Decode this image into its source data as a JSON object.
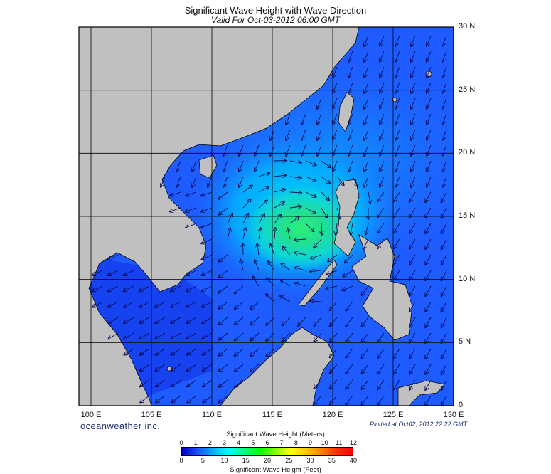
{
  "header": {
    "title": "Significant Wave Height with Wave Direction",
    "subtitle": "Valid For Oct-03-2012 06:00 GMT"
  },
  "map": {
    "lon_range": [
      99,
      130
    ],
    "lat_range": [
      0,
      30
    ],
    "lon_labels": [
      "100 E",
      "105 E",
      "110 E",
      "115 E",
      "120 E",
      "125 E",
      "130 E"
    ],
    "lat_labels": [
      "30 N",
      "25 N",
      "20 N",
      "15 N",
      "10 N",
      "5 N",
      "0"
    ],
    "land_color": "#c0c0c0",
    "ocean_base_color": "#1e50ff"
  },
  "footer": {
    "brand": "oceanweather inc.",
    "plotted": "Plotted at Oct02, 2012 22:22 GMT"
  },
  "legend": {
    "title_top": "Significant Wave Height (Meters)",
    "title_bottom": "Significant Wave Height (Feet)",
    "meters": [
      "0",
      "1",
      "2",
      "3",
      "4",
      "5",
      "6",
      "7",
      "8",
      "9",
      "10",
      "11",
      "12"
    ],
    "feet": [
      "0",
      "5",
      "10",
      "15",
      "20",
      "25",
      "30",
      "35",
      "40"
    ],
    "colors": [
      "#0000c8",
      "#1e50ff",
      "#00b4ff",
      "#00ffff",
      "#00ff80",
      "#00ff00",
      "#80ff00",
      "#ffff00",
      "#ffc800",
      "#ff8000",
      "#ff3000",
      "#ff0000"
    ]
  }
}
